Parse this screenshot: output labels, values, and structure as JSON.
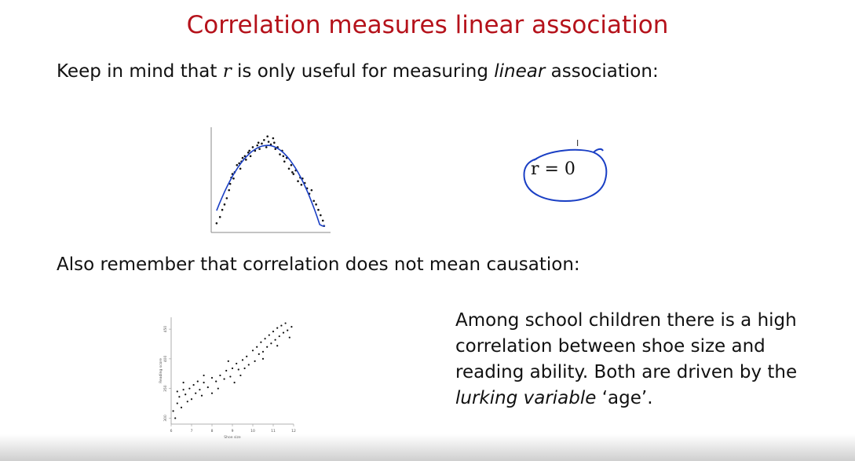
{
  "slide": {
    "title": "Correlation measures linear association",
    "line1": {
      "before": "Keep in mind that ",
      "r": "r",
      "middle": " is only useful for measuring ",
      "em": "linear",
      "after": " association:"
    },
    "annotation": {
      "text": "r = 0",
      "color": "#1a3fc4"
    },
    "line2": "Also remember that correlation does not mean causation:",
    "note": {
      "part1": "Among school children there is a high correlation between shoe size and reading ability. Both are driven by the ",
      "em1": "lurking variable",
      "part2": " ‘age’."
    },
    "colors": {
      "title": "#b5121b",
      "curve": "#1a3fc4"
    }
  },
  "chart_data": [
    {
      "type": "scatter",
      "title": "",
      "xlabel": "",
      "ylabel": "",
      "grid": false,
      "points": [
        [
          0.02,
          0.05
        ],
        [
          0.05,
          0.12
        ],
        [
          0.07,
          0.2
        ],
        [
          0.09,
          0.26
        ],
        [
          0.11,
          0.33
        ],
        [
          0.13,
          0.42
        ],
        [
          0.14,
          0.49
        ],
        [
          0.15,
          0.56
        ],
        [
          0.17,
          0.55
        ],
        [
          0.18,
          0.62
        ],
        [
          0.2,
          0.7
        ],
        [
          0.22,
          0.72
        ],
        [
          0.23,
          0.66
        ],
        [
          0.25,
          0.78
        ],
        [
          0.27,
          0.8
        ],
        [
          0.28,
          0.76
        ],
        [
          0.3,
          0.84
        ],
        [
          0.32,
          0.8
        ],
        [
          0.34,
          0.9
        ],
        [
          0.36,
          0.86
        ],
        [
          0.38,
          0.92
        ],
        [
          0.4,
          0.88
        ],
        [
          0.42,
          0.94
        ],
        [
          0.44,
          0.98
        ],
        [
          0.46,
          0.9
        ],
        [
          0.48,
          0.96
        ],
        [
          0.5,
          0.93
        ],
        [
          0.52,
          1.0
        ],
        [
          0.54,
          0.88
        ],
        [
          0.56,
          0.9
        ],
        [
          0.58,
          0.82
        ],
        [
          0.6,
          0.86
        ],
        [
          0.62,
          0.74
        ],
        [
          0.64,
          0.78
        ],
        [
          0.66,
          0.66
        ],
        [
          0.68,
          0.7
        ],
        [
          0.7,
          0.6
        ],
        [
          0.72,
          0.64
        ],
        [
          0.74,
          0.52
        ],
        [
          0.76,
          0.56
        ],
        [
          0.78,
          0.55
        ],
        [
          0.8,
          0.5
        ],
        [
          0.82,
          0.44
        ],
        [
          0.84,
          0.38
        ],
        [
          0.86,
          0.42
        ],
        [
          0.88,
          0.3
        ],
        [
          0.9,
          0.26
        ],
        [
          0.92,
          0.2
        ],
        [
          0.94,
          0.14
        ],
        [
          0.96,
          0.08
        ],
        [
          0.97,
          0.02
        ],
        [
          0.16,
          0.6
        ],
        [
          0.24,
          0.74
        ],
        [
          0.31,
          0.86
        ],
        [
          0.39,
          0.95
        ],
        [
          0.47,
          1.02
        ],
        [
          0.53,
          0.95
        ],
        [
          0.61,
          0.8
        ],
        [
          0.69,
          0.62
        ],
        [
          0.77,
          0.48
        ]
      ],
      "fit": "curve"
    },
    {
      "type": "scatter",
      "title": "",
      "xlabel": "Shoe size",
      "ylabel": "Reading score",
      "grid": false,
      "xticks": [
        6,
        7,
        8,
        9,
        10,
        11,
        12
      ],
      "yticks": [
        300,
        350,
        400,
        450
      ],
      "xlim": [
        6,
        12
      ],
      "ylim": [
        290,
        470
      ],
      "points": [
        [
          6.1,
          312
        ],
        [
          6.2,
          300
        ],
        [
          6.3,
          345
        ],
        [
          6.3,
          325
        ],
        [
          6.4,
          336
        ],
        [
          6.5,
          318
        ],
        [
          6.6,
          348
        ],
        [
          6.7,
          340
        ],
        [
          6.8,
          328
        ],
        [
          6.9,
          350
        ],
        [
          7.0,
          332
        ],
        [
          7.1,
          356
        ],
        [
          7.2,
          342
        ],
        [
          7.3,
          362
        ],
        [
          7.4,
          348
        ],
        [
          7.5,
          338
        ],
        [
          7.6,
          360
        ],
        [
          7.8,
          352
        ],
        [
          8.0,
          342
        ],
        [
          8.0,
          368
        ],
        [
          8.2,
          362
        ],
        [
          8.3,
          350
        ],
        [
          8.4,
          372
        ],
        [
          8.6,
          366
        ],
        [
          8.7,
          380
        ],
        [
          8.9,
          370
        ],
        [
          9.0,
          384
        ],
        [
          9.1,
          360
        ],
        [
          9.2,
          392
        ],
        [
          9.3,
          382
        ],
        [
          9.5,
          398
        ],
        [
          9.6,
          384
        ],
        [
          9.7,
          404
        ],
        [
          9.8,
          390
        ],
        [
          10.0,
          414
        ],
        [
          10.1,
          396
        ],
        [
          10.2,
          420
        ],
        [
          10.3,
          408
        ],
        [
          10.4,
          428
        ],
        [
          10.5,
          412
        ],
        [
          10.6,
          434
        ],
        [
          10.7,
          420
        ],
        [
          10.8,
          440
        ],
        [
          10.9,
          426
        ],
        [
          11.0,
          446
        ],
        [
          11.1,
          432
        ],
        [
          11.2,
          452
        ],
        [
          11.3,
          438
        ],
        [
          11.4,
          456
        ],
        [
          11.5,
          444
        ],
        [
          11.6,
          460
        ],
        [
          11.7,
          448
        ],
        [
          11.8,
          436
        ],
        [
          11.2,
          422
        ],
        [
          10.5,
          400
        ],
        [
          9.4,
          372
        ],
        [
          8.8,
          396
        ],
        [
          7.6,
          372
        ],
        [
          6.6,
          360
        ],
        [
          11.9,
          454
        ]
      ]
    }
  ]
}
